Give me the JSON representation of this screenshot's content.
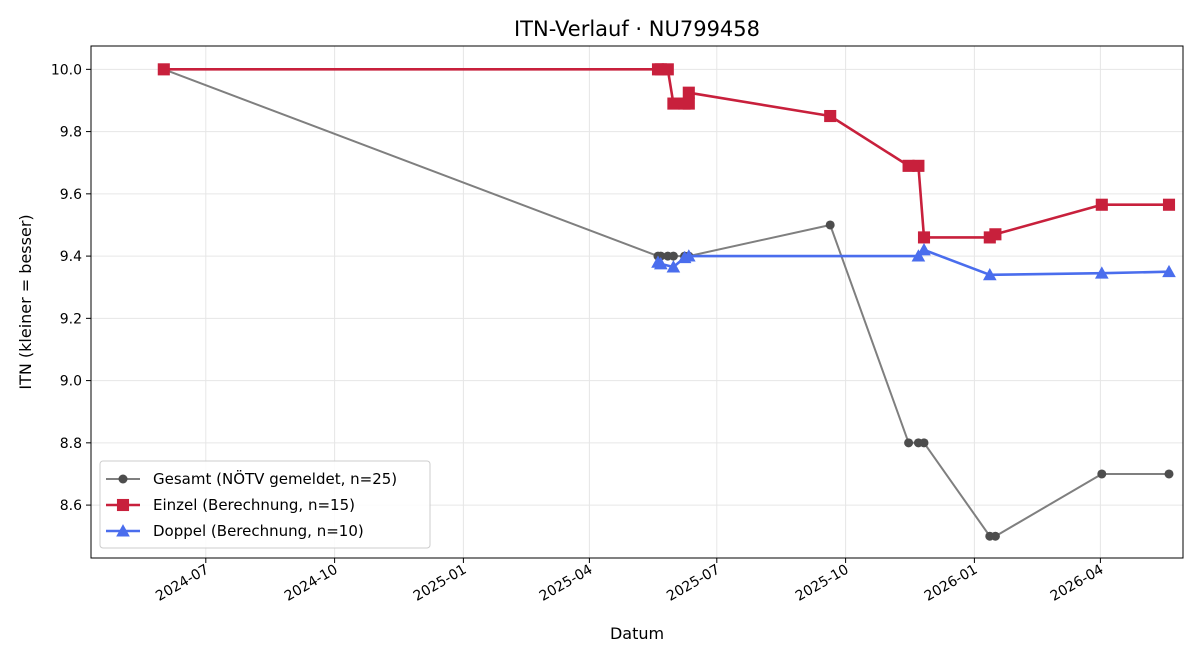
{
  "chart_data": {
    "type": "line",
    "title": "ITN-Verlauf · NU799458",
    "xlabel": "Datum",
    "ylabel": "ITN  (kleiner = besser)",
    "x_axis": {
      "type": "date",
      "range": [
        "2024-04-10",
        "2026-05-30"
      ],
      "ticks": [
        "2024-07-01",
        "2024-10-01",
        "2025-01-01",
        "2025-04-01",
        "2025-07-01",
        "2025-10-01",
        "2026-01-01",
        "2026-04-01"
      ],
      "tick_labels": [
        "2024-07",
        "2024-10",
        "2025-01",
        "2025-04",
        "2025-07",
        "2025-10",
        "2026-01",
        "2026-04"
      ]
    },
    "y_axis": {
      "range": [
        8.43,
        10.075
      ],
      "ticks": [
        8.6,
        8.8,
        9.0,
        9.2,
        9.4,
        9.6,
        9.8,
        10.0
      ],
      "tick_labels": [
        "8.6",
        "8.8",
        "9.0",
        "9.2",
        "9.4",
        "9.6",
        "9.8",
        "10.0"
      ]
    },
    "grid": true,
    "legend_position": "lower-left",
    "series": [
      {
        "name": "Gesamt (NÖTV gemeldet, n=25)",
        "color": "#7f7f7f",
        "marker": "circle",
        "x": [
          "2024-06-01",
          "2025-05-20",
          "2025-05-22",
          "2025-05-27",
          "2025-05-31",
          "2025-06-08",
          "2025-06-11",
          "2025-09-20",
          "2025-11-15",
          "2025-11-22",
          "2025-11-26",
          "2026-01-12",
          "2026-01-16",
          "2026-04-02",
          "2026-05-20"
        ],
        "values": [
          10.0,
          9.4,
          9.4,
          9.4,
          9.4,
          9.4,
          9.4,
          9.5,
          8.8,
          8.8,
          8.8,
          8.5,
          8.5,
          8.7,
          8.7
        ]
      },
      {
        "name": "Einzel (Berechnung, n=15)",
        "color": "#c8203c",
        "marker": "square",
        "x": [
          "2024-06-01",
          "2025-05-20",
          "2025-05-22",
          "2025-05-27",
          "2025-05-31",
          "2025-06-08",
          "2025-06-11",
          "2025-06-11",
          "2025-09-20",
          "2025-11-15",
          "2025-11-22",
          "2025-11-26",
          "2026-01-12",
          "2026-01-16",
          "2026-04-02",
          "2026-05-20"
        ],
        "values": [
          10.0,
          10.0,
          10.0,
          10.0,
          9.89,
          9.89,
          9.89,
          9.925,
          9.85,
          9.69,
          9.69,
          9.46,
          9.46,
          9.47,
          9.565,
          9.565
        ]
      },
      {
        "name": "Doppel (Berechnung, n=10)",
        "color": "#4a6ded",
        "marker": "triangle",
        "x": [
          "2025-05-20",
          "2025-05-22",
          "2025-05-31",
          "2025-06-08",
          "2025-06-11",
          "2025-11-22",
          "2025-11-26",
          "2026-01-12",
          "2026-04-02",
          "2026-05-20"
        ],
        "values": [
          9.38,
          9.375,
          9.365,
          9.395,
          9.4,
          9.4,
          9.42,
          9.34,
          9.345,
          9.35
        ]
      }
    ]
  }
}
